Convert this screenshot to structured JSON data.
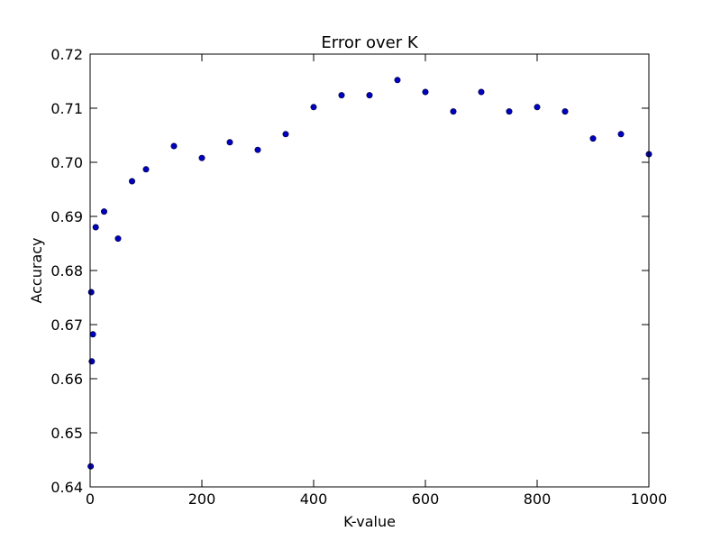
{
  "chart_data": {
    "type": "scatter",
    "title": "Error over K",
    "xlabel": "K-value",
    "ylabel": "Accuracy",
    "xlim": [
      0,
      1000
    ],
    "ylim": [
      0.64,
      0.72
    ],
    "xticks": [
      0,
      200,
      400,
      600,
      800,
      1000
    ],
    "xtick_labels": [
      "0",
      "200",
      "400",
      "600",
      "800",
      "1000"
    ],
    "yticks": [
      0.64,
      0.65,
      0.66,
      0.67,
      0.68,
      0.69,
      0.7,
      0.71,
      0.72
    ],
    "ytick_labels": [
      "0.64",
      "0.65",
      "0.66",
      "0.67",
      "0.68",
      "0.69",
      "0.70",
      "0.71",
      "0.72"
    ],
    "grid": false,
    "legend": false,
    "marker_color": "#0000bf",
    "marker_edge_color": "#000033",
    "series": [
      {
        "x": [
          1,
          2,
          3,
          5,
          10,
          25,
          50,
          75,
          100,
          150,
          200,
          250,
          300,
          350,
          400,
          450,
          500,
          550,
          600,
          650,
          700,
          750,
          800,
          850,
          900,
          950,
          1000
        ],
        "y": [
          0.6438,
          0.676,
          0.6632,
          0.6682,
          0.688,
          0.6909,
          0.6859,
          0.6965,
          0.6987,
          0.703,
          0.7008,
          0.7037,
          0.7023,
          0.7052,
          0.7102,
          0.7124,
          0.7124,
          0.7152,
          0.713,
          0.7094,
          0.713,
          0.7094,
          0.7102,
          0.7094,
          0.7044,
          0.7052,
          0.7015
        ]
      }
    ]
  }
}
